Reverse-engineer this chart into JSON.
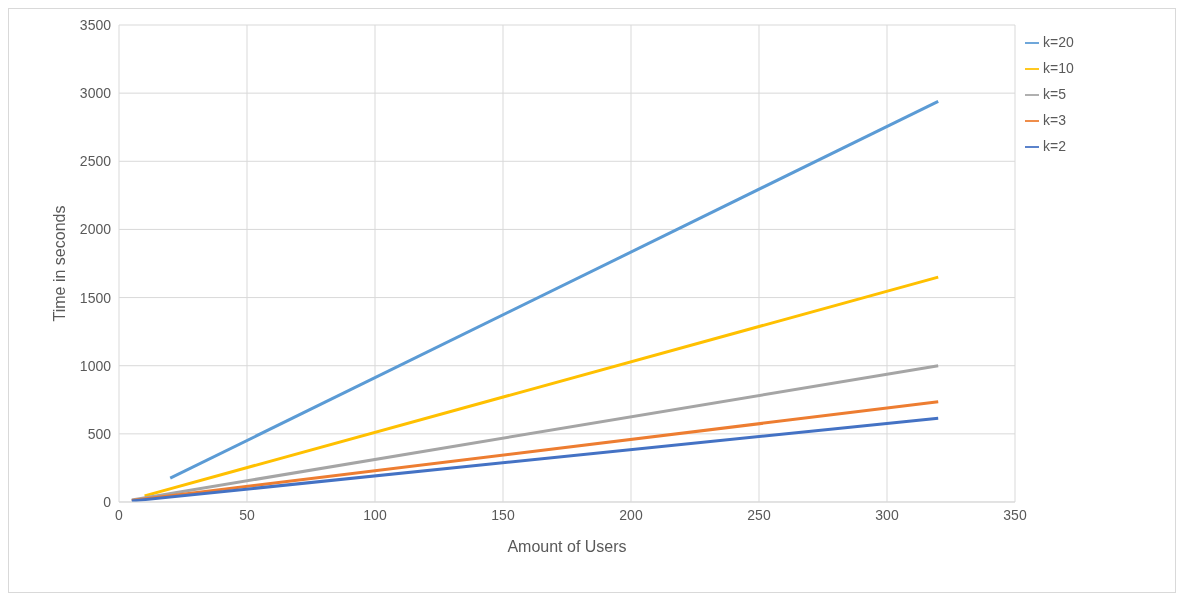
{
  "chart_data": {
    "type": "line",
    "xlabel": "Amount of Users",
    "ylabel": "Time  in seconds",
    "xlim": [
      0,
      350
    ],
    "xticks": [
      0,
      50,
      100,
      150,
      200,
      250,
      300,
      350
    ],
    "ylim": [
      0,
      3500
    ],
    "yticks": [
      0,
      500,
      1000,
      1500,
      2000,
      2500,
      3000,
      3500
    ],
    "grid": true,
    "legend": "top right",
    "marker": "none",
    "series": [
      {
        "name": "k=20",
        "color": "#5b9bd5",
        "x": [
          20,
          320
        ],
        "values": [
          175,
          2940
        ]
      },
      {
        "name": "k=10",
        "color": "#ffc000",
        "x": [
          10,
          320
        ],
        "values": [
          45,
          1650
        ]
      },
      {
        "name": "k=5",
        "color": "#a5a5a5",
        "x": [
          5,
          320
        ],
        "values": [
          15,
          1000
        ]
      },
      {
        "name": "k=3",
        "color": "#ed7d31",
        "x": [
          5,
          320
        ],
        "values": [
          12,
          735
        ]
      },
      {
        "name": "k=2",
        "color": "#4472c4",
        "x": [
          5,
          320
        ],
        "values": [
          8,
          615
        ]
      }
    ]
  }
}
